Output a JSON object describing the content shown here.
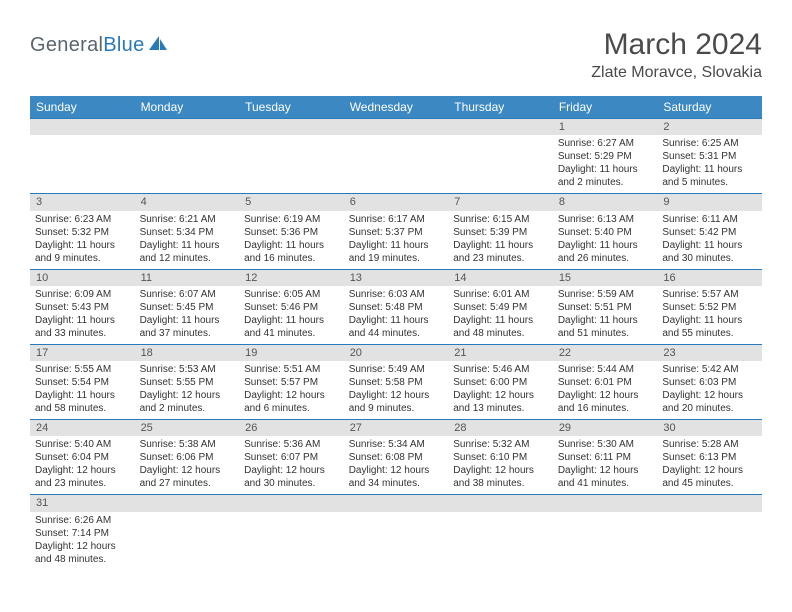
{
  "brand": {
    "text1": "General",
    "text2": "Blue"
  },
  "title": {
    "month": "March 2024",
    "location": "Zlate Moravce, Slovakia"
  },
  "colors": {
    "header_bg": "#3b88c3",
    "border": "#2a7aba",
    "daynum_bg": "#e2e2e2",
    "logo_gray": "#5a6570",
    "logo_blue": "#2a7aba"
  },
  "weekdays": [
    "Sunday",
    "Monday",
    "Tuesday",
    "Wednesday",
    "Thursday",
    "Friday",
    "Saturday"
  ],
  "weeks": [
    [
      null,
      null,
      null,
      null,
      null,
      {
        "n": "1",
        "sr": "Sunrise: 6:27 AM",
        "ss": "Sunset: 5:29 PM",
        "d1": "Daylight: 11 hours",
        "d2": "and 2 minutes."
      },
      {
        "n": "2",
        "sr": "Sunrise: 6:25 AM",
        "ss": "Sunset: 5:31 PM",
        "d1": "Daylight: 11 hours",
        "d2": "and 5 minutes."
      }
    ],
    [
      {
        "n": "3",
        "sr": "Sunrise: 6:23 AM",
        "ss": "Sunset: 5:32 PM",
        "d1": "Daylight: 11 hours",
        "d2": "and 9 minutes."
      },
      {
        "n": "4",
        "sr": "Sunrise: 6:21 AM",
        "ss": "Sunset: 5:34 PM",
        "d1": "Daylight: 11 hours",
        "d2": "and 12 minutes."
      },
      {
        "n": "5",
        "sr": "Sunrise: 6:19 AM",
        "ss": "Sunset: 5:36 PM",
        "d1": "Daylight: 11 hours",
        "d2": "and 16 minutes."
      },
      {
        "n": "6",
        "sr": "Sunrise: 6:17 AM",
        "ss": "Sunset: 5:37 PM",
        "d1": "Daylight: 11 hours",
        "d2": "and 19 minutes."
      },
      {
        "n": "7",
        "sr": "Sunrise: 6:15 AM",
        "ss": "Sunset: 5:39 PM",
        "d1": "Daylight: 11 hours",
        "d2": "and 23 minutes."
      },
      {
        "n": "8",
        "sr": "Sunrise: 6:13 AM",
        "ss": "Sunset: 5:40 PM",
        "d1": "Daylight: 11 hours",
        "d2": "and 26 minutes."
      },
      {
        "n": "9",
        "sr": "Sunrise: 6:11 AM",
        "ss": "Sunset: 5:42 PM",
        "d1": "Daylight: 11 hours",
        "d2": "and 30 minutes."
      }
    ],
    [
      {
        "n": "10",
        "sr": "Sunrise: 6:09 AM",
        "ss": "Sunset: 5:43 PM",
        "d1": "Daylight: 11 hours",
        "d2": "and 33 minutes."
      },
      {
        "n": "11",
        "sr": "Sunrise: 6:07 AM",
        "ss": "Sunset: 5:45 PM",
        "d1": "Daylight: 11 hours",
        "d2": "and 37 minutes."
      },
      {
        "n": "12",
        "sr": "Sunrise: 6:05 AM",
        "ss": "Sunset: 5:46 PM",
        "d1": "Daylight: 11 hours",
        "d2": "and 41 minutes."
      },
      {
        "n": "13",
        "sr": "Sunrise: 6:03 AM",
        "ss": "Sunset: 5:48 PM",
        "d1": "Daylight: 11 hours",
        "d2": "and 44 minutes."
      },
      {
        "n": "14",
        "sr": "Sunrise: 6:01 AM",
        "ss": "Sunset: 5:49 PM",
        "d1": "Daylight: 11 hours",
        "d2": "and 48 minutes."
      },
      {
        "n": "15",
        "sr": "Sunrise: 5:59 AM",
        "ss": "Sunset: 5:51 PM",
        "d1": "Daylight: 11 hours",
        "d2": "and 51 minutes."
      },
      {
        "n": "16",
        "sr": "Sunrise: 5:57 AM",
        "ss": "Sunset: 5:52 PM",
        "d1": "Daylight: 11 hours",
        "d2": "and 55 minutes."
      }
    ],
    [
      {
        "n": "17",
        "sr": "Sunrise: 5:55 AM",
        "ss": "Sunset: 5:54 PM",
        "d1": "Daylight: 11 hours",
        "d2": "and 58 minutes."
      },
      {
        "n": "18",
        "sr": "Sunrise: 5:53 AM",
        "ss": "Sunset: 5:55 PM",
        "d1": "Daylight: 12 hours",
        "d2": "and 2 minutes."
      },
      {
        "n": "19",
        "sr": "Sunrise: 5:51 AM",
        "ss": "Sunset: 5:57 PM",
        "d1": "Daylight: 12 hours",
        "d2": "and 6 minutes."
      },
      {
        "n": "20",
        "sr": "Sunrise: 5:49 AM",
        "ss": "Sunset: 5:58 PM",
        "d1": "Daylight: 12 hours",
        "d2": "and 9 minutes."
      },
      {
        "n": "21",
        "sr": "Sunrise: 5:46 AM",
        "ss": "Sunset: 6:00 PM",
        "d1": "Daylight: 12 hours",
        "d2": "and 13 minutes."
      },
      {
        "n": "22",
        "sr": "Sunrise: 5:44 AM",
        "ss": "Sunset: 6:01 PM",
        "d1": "Daylight: 12 hours",
        "d2": "and 16 minutes."
      },
      {
        "n": "23",
        "sr": "Sunrise: 5:42 AM",
        "ss": "Sunset: 6:03 PM",
        "d1": "Daylight: 12 hours",
        "d2": "and 20 minutes."
      }
    ],
    [
      {
        "n": "24",
        "sr": "Sunrise: 5:40 AM",
        "ss": "Sunset: 6:04 PM",
        "d1": "Daylight: 12 hours",
        "d2": "and 23 minutes."
      },
      {
        "n": "25",
        "sr": "Sunrise: 5:38 AM",
        "ss": "Sunset: 6:06 PM",
        "d1": "Daylight: 12 hours",
        "d2": "and 27 minutes."
      },
      {
        "n": "26",
        "sr": "Sunrise: 5:36 AM",
        "ss": "Sunset: 6:07 PM",
        "d1": "Daylight: 12 hours",
        "d2": "and 30 minutes."
      },
      {
        "n": "27",
        "sr": "Sunrise: 5:34 AM",
        "ss": "Sunset: 6:08 PM",
        "d1": "Daylight: 12 hours",
        "d2": "and 34 minutes."
      },
      {
        "n": "28",
        "sr": "Sunrise: 5:32 AM",
        "ss": "Sunset: 6:10 PM",
        "d1": "Daylight: 12 hours",
        "d2": "and 38 minutes."
      },
      {
        "n": "29",
        "sr": "Sunrise: 5:30 AM",
        "ss": "Sunset: 6:11 PM",
        "d1": "Daylight: 12 hours",
        "d2": "and 41 minutes."
      },
      {
        "n": "30",
        "sr": "Sunrise: 5:28 AM",
        "ss": "Sunset: 6:13 PM",
        "d1": "Daylight: 12 hours",
        "d2": "and 45 minutes."
      }
    ],
    [
      {
        "n": "31",
        "sr": "Sunrise: 6:26 AM",
        "ss": "Sunset: 7:14 PM",
        "d1": "Daylight: 12 hours",
        "d2": "and 48 minutes."
      },
      null,
      null,
      null,
      null,
      null,
      null
    ]
  ]
}
